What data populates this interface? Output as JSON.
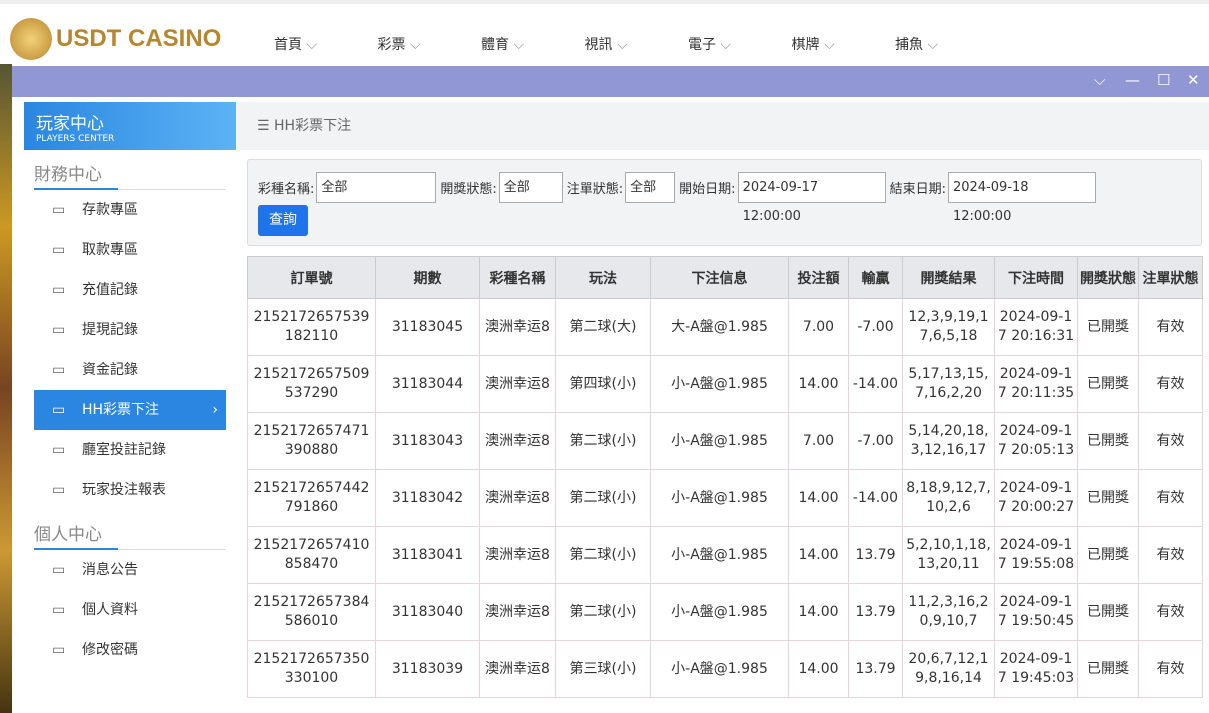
{
  "header": {
    "logo": "USDT CASINO",
    "nav": [
      "首頁",
      "彩票",
      "體育",
      "視訊",
      "電子",
      "棋牌",
      "捕魚"
    ]
  },
  "sidebar": {
    "title": "玩家中心",
    "subtitle": "PLAYERS CENTER",
    "sections": [
      {
        "title": "財務中心",
        "items": [
          "存款專區",
          "取款專區",
          "充值記錄",
          "提現記錄",
          "資金記錄",
          "HH彩票下注",
          "廳室投註記錄",
          "玩家投注報表"
        ]
      },
      {
        "title": "個人中心",
        "items": [
          "消息公告",
          "個人資料",
          "修改密碼"
        ]
      }
    ]
  },
  "breadcrumb": "HH彩票下注",
  "filters": {
    "fields": [
      {
        "label": "彩種名稱:",
        "value": "全部"
      },
      {
        "label": "開獎狀態:",
        "value": "全部"
      },
      {
        "label": "注單狀態:",
        "value": "全部"
      },
      {
        "label": "開始日期:",
        "value": "2024-09-17 12:00:00"
      },
      {
        "label": "結束日期:",
        "value": "2024-09-18 12:00:00"
      }
    ],
    "button": "查詢"
  },
  "table": {
    "headers": [
      "訂單號",
      "期數",
      "彩種名稱",
      "玩法",
      "下注信息",
      "投注額",
      "輸贏",
      "開獎結果",
      "下注時間",
      "開獎狀態",
      "注單狀態"
    ],
    "rows": [
      [
        "2152172657539182110",
        "31183045",
        "澳洲幸运8",
        "第二球(大)",
        "大-A盤@1.985",
        "7.00",
        "-7.00",
        "12,3,9,19,17,6,5,18",
        "2024-09-17 20:16:31",
        "已開獎",
        "有效"
      ],
      [
        "2152172657509537290",
        "31183044",
        "澳洲幸运8",
        "第四球(小)",
        "小-A盤@1.985",
        "14.00",
        "-14.00",
        "5,17,13,15,7,16,2,20",
        "2024-09-17 20:11:35",
        "已開獎",
        "有效"
      ],
      [
        "2152172657471390880",
        "31183043",
        "澳洲幸运8",
        "第二球(小)",
        "小-A盤@1.985",
        "7.00",
        "-7.00",
        "5,14,20,18,3,12,16,17",
        "2024-09-17 20:05:13",
        "已開獎",
        "有效"
      ],
      [
        "2152172657442791860",
        "31183042",
        "澳洲幸运8",
        "第二球(小)",
        "小-A盤@1.985",
        "14.00",
        "-14.00",
        "8,18,9,12,7,10,2,6",
        "2024-09-17 20:00:27",
        "已開獎",
        "有效"
      ],
      [
        "2152172657410858470",
        "31183041",
        "澳洲幸运8",
        "第二球(小)",
        "小-A盤@1.985",
        "14.00",
        "13.79",
        "5,2,10,1,18,13,20,11",
        "2024-09-17 19:55:08",
        "已開獎",
        "有效"
      ],
      [
        "2152172657384586010",
        "31183040",
        "澳洲幸运8",
        "第二球(小)",
        "小-A盤@1.985",
        "14.00",
        "13.79",
        "11,2,3,16,20,9,10,7",
        "2024-09-17 19:50:45",
        "已開獎",
        "有效"
      ],
      [
        "2152172657350330100",
        "31183039",
        "澳洲幸运8",
        "第三球(小)",
        "小-A盤@1.985",
        "14.00",
        "13.79",
        "20,6,7,12,19,8,16,14",
        "2024-09-17 19:45:03",
        "已開獎",
        "有效"
      ]
    ]
  }
}
